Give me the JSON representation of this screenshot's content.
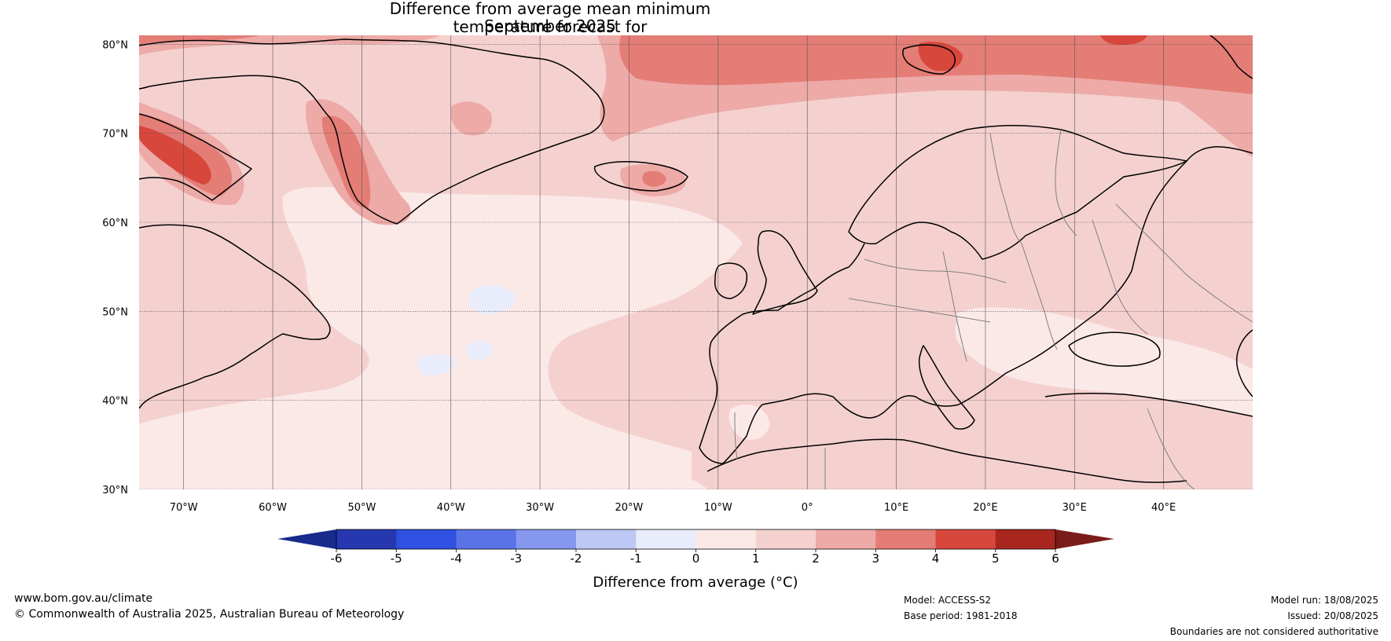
{
  "title": {
    "line1": "Difference from average mean minimum temperature forecast for",
    "line2": "September 2025"
  },
  "map": {
    "lat_labels": [
      "80°N",
      "70°N",
      "60°N",
      "50°N",
      "40°N",
      "30°N"
    ],
    "lon_labels": [
      "70°W",
      "60°W",
      "50°W",
      "40°W",
      "30°W",
      "20°W",
      "10°W",
      "0°",
      "10°E",
      "20°E",
      "30°E",
      "40°E"
    ],
    "lat_range": [
      30,
      81
    ],
    "lon_range": [
      -75,
      50
    ],
    "background_anomaly_colour": "#f4d1cf"
  },
  "colorbar": {
    "label": "Difference from average (°C)",
    "ticks": [
      "-6",
      "-5",
      "-4",
      "-3",
      "-2",
      "-1",
      "0",
      "1",
      "2",
      "3",
      "4",
      "5",
      "6"
    ],
    "under_colour": "#182a8c",
    "over_colour": "#7a1c1a",
    "colours": [
      "#2637b0",
      "#2f50e0",
      "#5a74e8",
      "#8598ed",
      "#bec8f4",
      "#e8ecfb",
      "#fbe9e8",
      "#f4d1cf",
      "#edaaa7",
      "#e47d76",
      "#d8473c",
      "#a8261e"
    ]
  },
  "footer": {
    "website": "www.bom.gov.au/climate",
    "copyright": "© Commonwealth of Australia 2025, Australian Bureau of Meteorology",
    "model": "Model: ACCESS-S2",
    "base_period": "Base period: 1981-2018",
    "model_run": "Model run: 18/08/2025",
    "issued": "Issued: 20/08/2025",
    "boundaries": "Boundaries are not considered authoritative"
  }
}
